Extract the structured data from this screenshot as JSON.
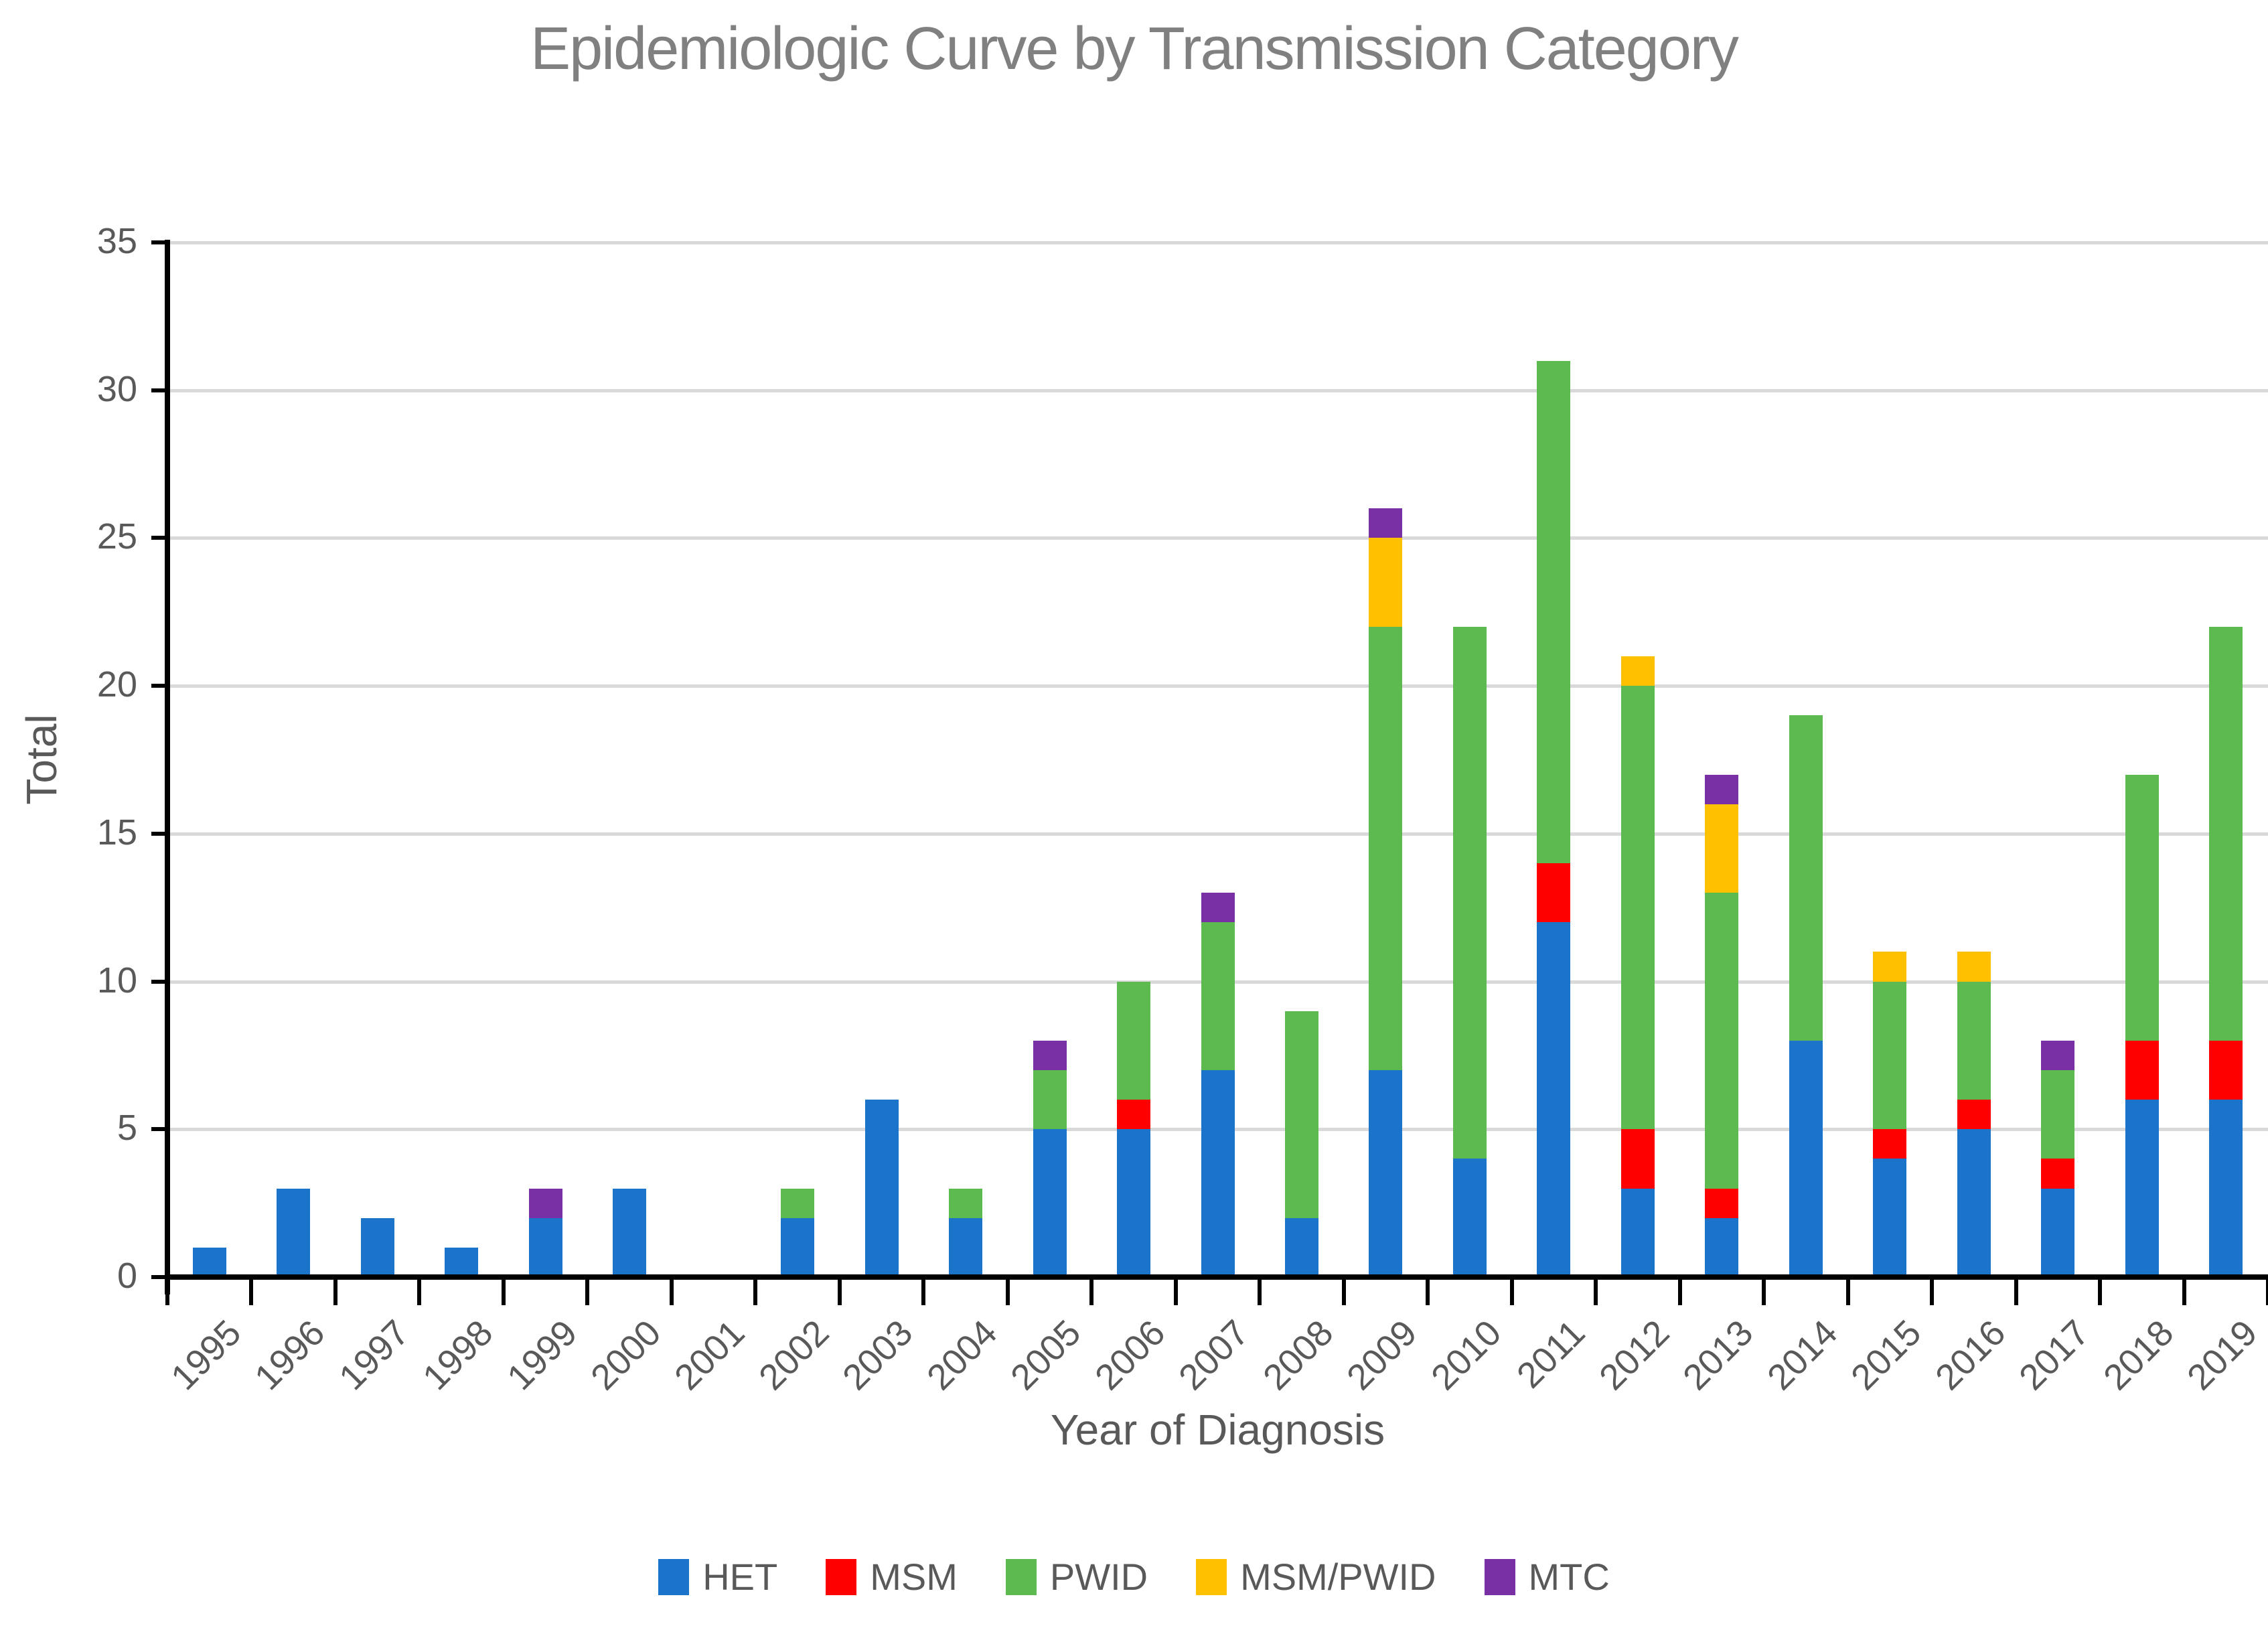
{
  "chart_data": {
    "type": "bar",
    "stacked": true,
    "title": "Epidemiologic Curve by Transmission Category",
    "xlabel": "Year of Diagnosis",
    "ylabel": "Total",
    "categories": [
      1995,
      1996,
      1997,
      1998,
      1999,
      2000,
      2001,
      2002,
      2003,
      2004,
      2005,
      2006,
      2007,
      2008,
      2009,
      2010,
      2011,
      2012,
      2013,
      2014,
      2015,
      2016,
      2017,
      2018,
      2019
    ],
    "series": [
      {
        "name": "HET",
        "color": "#1b74c9",
        "values": [
          1,
          3,
          2,
          1,
          2,
          3,
          0,
          2,
          6,
          2,
          5,
          5,
          7,
          2,
          7,
          4,
          12,
          3,
          2,
          8,
          4,
          5,
          3,
          6,
          6
        ]
      },
      {
        "name": "MSM",
        "color": "#ff0000",
        "values": [
          0,
          0,
          0,
          0,
          0,
          0,
          0,
          0,
          0,
          0,
          0,
          1,
          0,
          0,
          0,
          0,
          2,
          2,
          1,
          0,
          1,
          1,
          1,
          2,
          2
        ]
      },
      {
        "name": "PWID",
        "color": "#5cba50",
        "values": [
          0,
          0,
          0,
          0,
          0,
          0,
          0,
          1,
          0,
          1,
          2,
          4,
          5,
          7,
          15,
          18,
          17,
          15,
          10,
          11,
          5,
          4,
          3,
          9,
          14
        ]
      },
      {
        "name": "MSM/PWID",
        "color": "#ffc000",
        "values": [
          0,
          0,
          0,
          0,
          0,
          0,
          0,
          0,
          0,
          0,
          0,
          0,
          0,
          0,
          3,
          0,
          0,
          1,
          3,
          0,
          1,
          1,
          0,
          0,
          0
        ]
      },
      {
        "name": "MTC",
        "color": "#7a30a5",
        "values": [
          0,
          0,
          0,
          0,
          1,
          0,
          0,
          0,
          0,
          0,
          1,
          0,
          1,
          0,
          1,
          0,
          0,
          0,
          1,
          0,
          0,
          0,
          1,
          0,
          0
        ]
      }
    ],
    "totals": [
      1,
      3,
      2,
      1,
      3,
      3,
      0,
      3,
      6,
      3,
      8,
      10,
      13,
      9,
      26,
      22,
      31,
      21,
      17,
      19,
      11,
      11,
      8,
      17,
      22
    ],
    "ylim": [
      0,
      35
    ],
    "ytick_step": 5,
    "grid": "horizontal",
    "legend_position": "bottom",
    "axis_color": "#000000",
    "gridline_color": "#d9d9d9",
    "title_color": "#808080",
    "label_color": "#595959"
  }
}
